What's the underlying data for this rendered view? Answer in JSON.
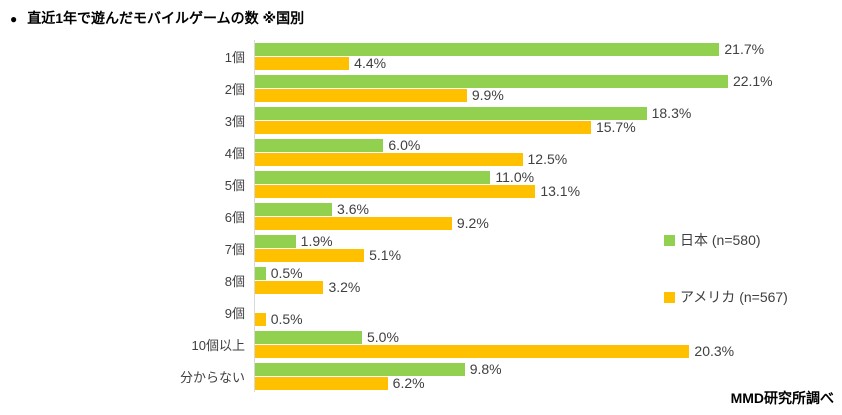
{
  "header": {
    "bullet": "●",
    "title": "直近1年で遊んだモバイルゲームの数 ※国別"
  },
  "footer": {
    "source": "MMD研究所調べ"
  },
  "chart_data": {
    "type": "bar",
    "orientation": "horizontal",
    "title": "直近1年で遊んだモバイルゲームの数 ※国別",
    "categories": [
      "1個",
      "2個",
      "3個",
      "4個",
      "5個",
      "6個",
      "7個",
      "8個",
      "9個",
      "10個以上",
      "分からない"
    ],
    "series": [
      {
        "key": "japan",
        "name": "日本 (n=580)",
        "color": "#92D050",
        "values": [
          21.7,
          22.1,
          18.3,
          6.0,
          11.0,
          3.6,
          1.9,
          0.5,
          null,
          5.0,
          9.8
        ]
      },
      {
        "key": "america",
        "name": "アメリカ (n=567)",
        "color": "#FFC000",
        "values": [
          4.4,
          9.9,
          15.7,
          12.5,
          13.1,
          9.2,
          5.1,
          3.2,
          0.5,
          20.3,
          6.2
        ]
      }
    ],
    "xlim": [
      0,
      25
    ],
    "value_suffix": "%",
    "value_labels": "outside-end",
    "grid": false,
    "legend_position": "right-middle",
    "axis_line_color": "#D9D9D9",
    "label_color": "#404040"
  }
}
